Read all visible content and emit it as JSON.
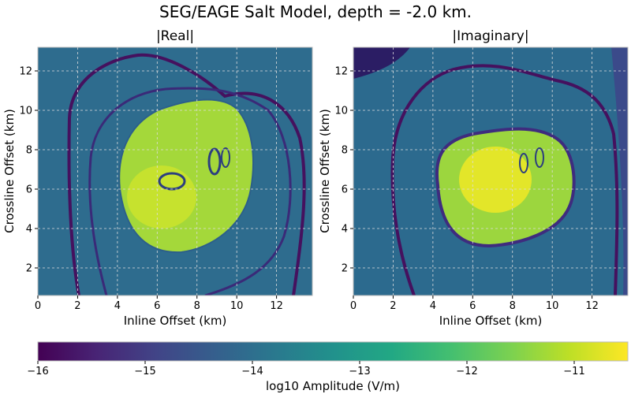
{
  "figure": {
    "suptitle": "SEG/EAGE Salt Model, depth = -2.0 km."
  },
  "chart_data": [
    {
      "type": "heatmap",
      "title": "|Real|",
      "xlabel": "Inline Offset (km)",
      "ylabel": "Crossline Offset (km)",
      "xlim": [
        0,
        13.8
      ],
      "ylim": [
        0.6,
        13.2
      ],
      "xticks": [
        0,
        2,
        4,
        6,
        8,
        10,
        12
      ],
      "yticks": [
        2,
        4,
        6,
        8,
        10,
        12
      ],
      "grid": true,
      "value_range": [
        -16,
        -10.5
      ],
      "background_level": -14.4,
      "structures": [
        {
          "kind": "outer_ring",
          "value": -15.9
        },
        {
          "kind": "salt_body",
          "value": -11.6
        },
        {
          "kind": "salt_peak",
          "x": 6.4,
          "y": 5.6,
          "value": -11.0
        },
        {
          "kind": "minimum_loop",
          "x": 6.6,
          "y": 6.4,
          "value": -15.0
        },
        {
          "kind": "minimum_loop",
          "x": 8.6,
          "y": 7.4,
          "value": -15.0
        }
      ]
    },
    {
      "type": "heatmap",
      "title": "|Imaginary|",
      "xlabel": "Inline Offset (km)",
      "ylabel": "Crossline Offset (km)",
      "xlim": [
        0,
        13.8
      ],
      "ylim": [
        0.6,
        13.2
      ],
      "xticks": [
        0,
        2,
        4,
        6,
        8,
        10,
        12
      ],
      "yticks": [
        2,
        4,
        6,
        8,
        10,
        12
      ],
      "grid": true,
      "value_range": [
        -16,
        -10.5
      ],
      "background_level": -14.5,
      "structures": [
        {
          "kind": "outer_ring",
          "value": -15.9
        },
        {
          "kind": "inner_boundary",
          "value": -15.4
        },
        {
          "kind": "salt_body",
          "value": -11.8
        },
        {
          "kind": "salt_peak",
          "x": 6.9,
          "y": 6.3,
          "value": -10.6
        },
        {
          "kind": "minimum_loop",
          "x": 8.6,
          "y": 7.4,
          "value": -15.0
        }
      ]
    }
  ],
  "colorbar": {
    "label": "log10 Amplitude (V/m)",
    "colormap": "viridis",
    "range": [
      -16,
      -10.5
    ],
    "ticks": [
      "−16",
      "−15",
      "−14",
      "−13",
      "−12",
      "−11"
    ]
  }
}
